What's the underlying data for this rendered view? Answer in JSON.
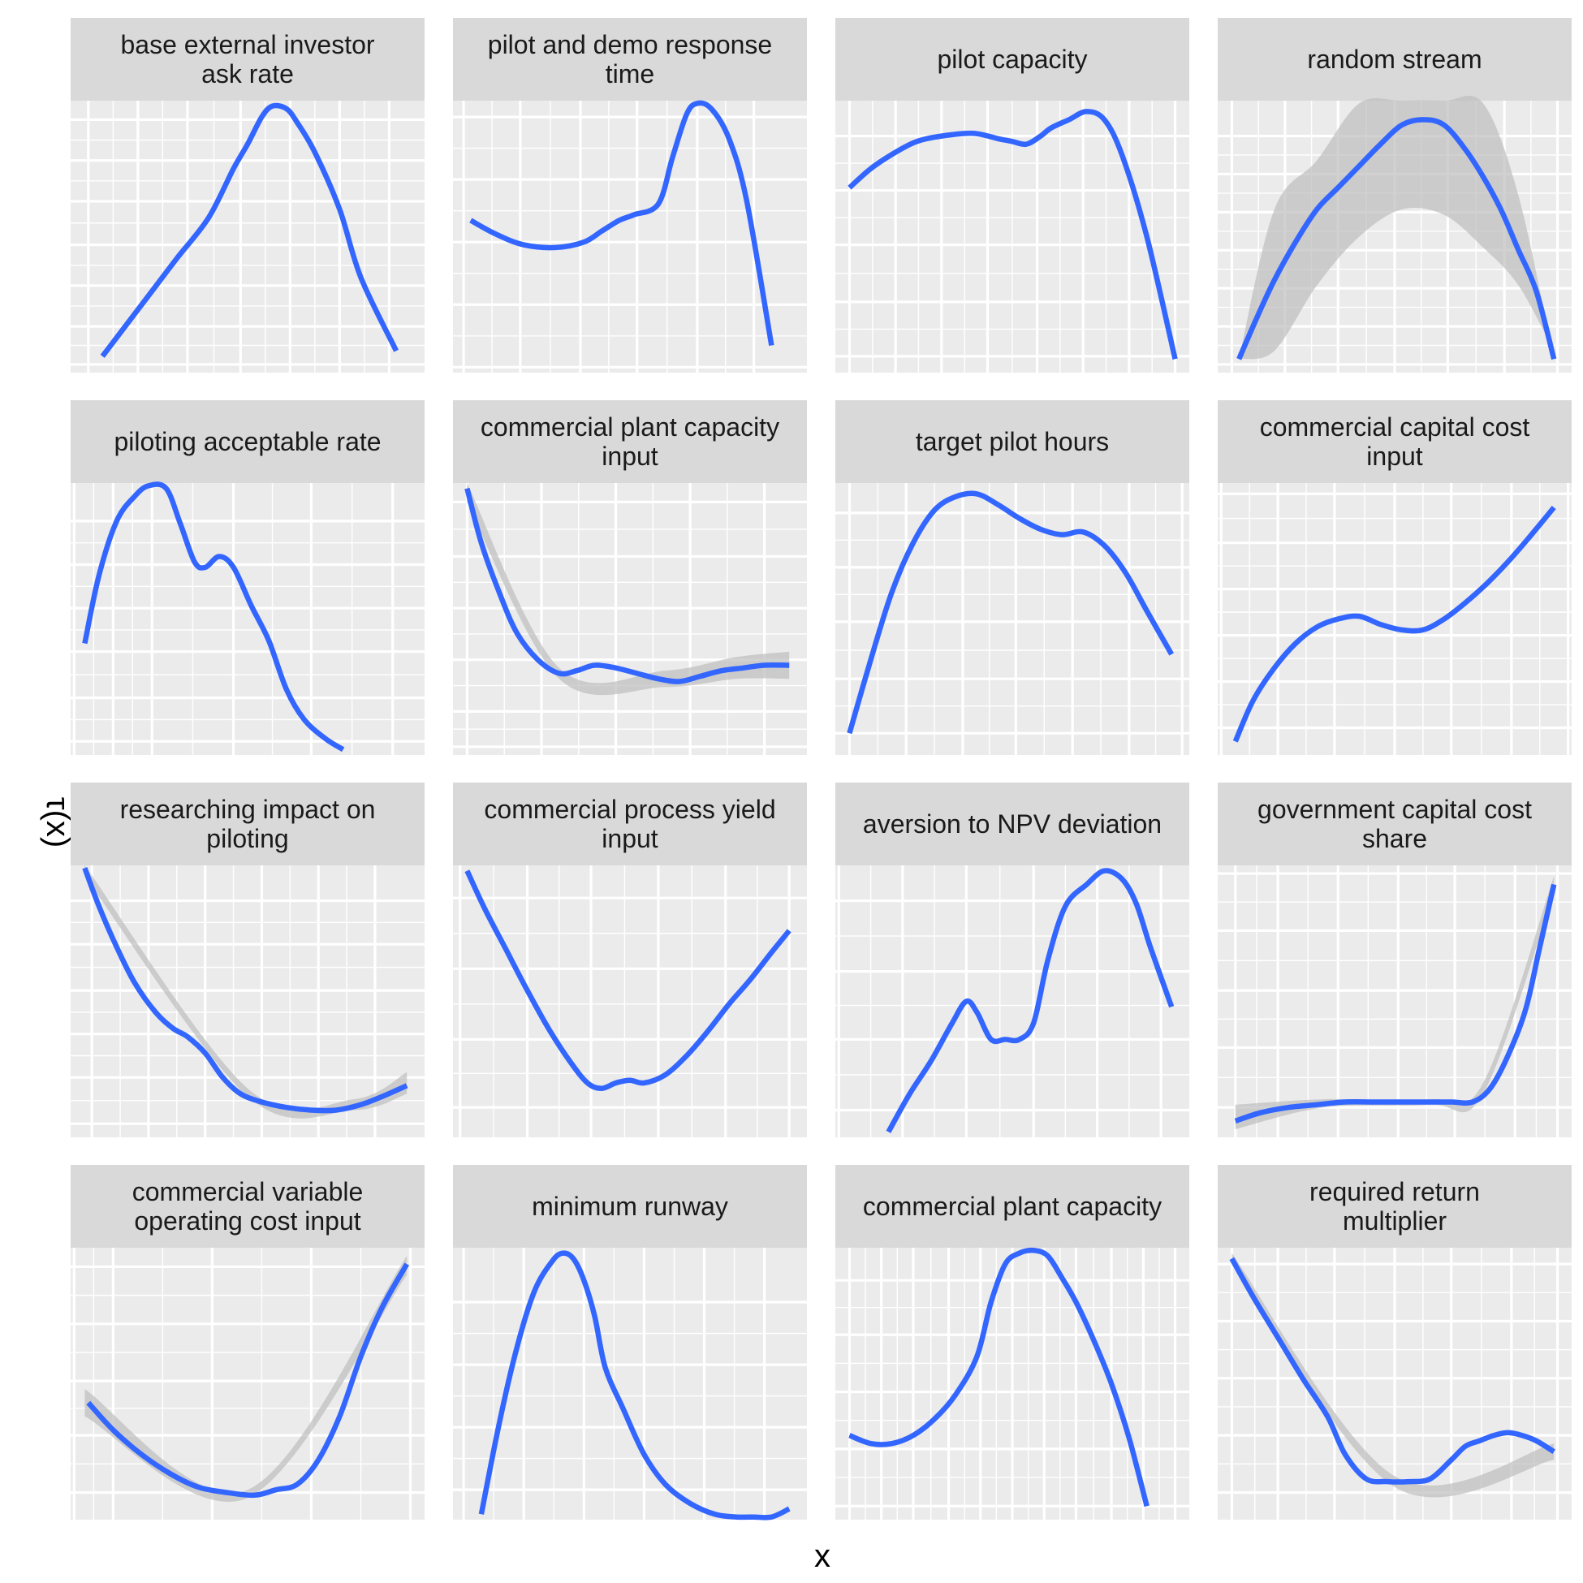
{
  "chart_data": {
    "type": "line",
    "xlabel": "x",
    "ylabel": "τ(x)",
    "layout": "facet-wrap 4x4, free scales, axis tick labels hidden",
    "style": {
      "panel_bg": "#EBEBEB",
      "strip_bg": "#D9D9D9",
      "grid_color": "#FFFFFF",
      "line_color": "#3366FF",
      "ribbon_color": "#BDBDBD"
    },
    "panels": [
      {
        "title": "base external investor ask rate",
        "xticks": [
          0.05,
          0.19,
          0.33,
          0.48,
          0.62,
          0.76,
          0.9
        ],
        "yticks": [
          0.03,
          0.17,
          0.32,
          0.47,
          0.63,
          0.78,
          0.93
        ],
        "x": [
          0.09,
          0.23,
          0.3,
          0.39,
          0.46,
          0.5,
          0.54,
          0.57,
          0.61,
          0.64,
          0.69,
          0.76,
          0.82,
          0.92
        ],
        "y": [
          0.06,
          0.3,
          0.42,
          0.57,
          0.75,
          0.84,
          0.94,
          0.98,
          0.97,
          0.92,
          0.81,
          0.6,
          0.35,
          0.08
        ],
        "band": []
      },
      {
        "title": "pilot and demo response time",
        "xticks": [
          0.03,
          0.19,
          0.36,
          0.52,
          0.69,
          0.85
        ],
        "yticks": [
          0.02,
          0.25,
          0.48,
          0.71,
          0.94
        ],
        "x": [
          0.05,
          0.12,
          0.2,
          0.29,
          0.37,
          0.42,
          0.47,
          0.51,
          0.58,
          0.62,
          0.66,
          0.69,
          0.73,
          0.78,
          0.83,
          0.9
        ],
        "y": [
          0.56,
          0.51,
          0.47,
          0.46,
          0.48,
          0.52,
          0.56,
          0.58,
          0.62,
          0.79,
          0.95,
          0.99,
          0.97,
          0.86,
          0.63,
          0.1
        ],
        "band": []
      },
      {
        "title": "pilot capacity",
        "xticks": [
          0.04,
          0.17,
          0.3,
          0.43,
          0.57,
          0.7,
          0.83,
          0.96
        ],
        "yticks": [
          0.06,
          0.26,
          0.47,
          0.67,
          0.87
        ],
        "x": [
          0.04,
          0.1,
          0.17,
          0.23,
          0.3,
          0.39,
          0.46,
          0.5,
          0.54,
          0.58,
          0.61,
          0.66,
          0.71,
          0.76,
          0.81,
          0.88,
          0.96
        ],
        "y": [
          0.68,
          0.75,
          0.81,
          0.85,
          0.87,
          0.88,
          0.86,
          0.85,
          0.84,
          0.87,
          0.9,
          0.93,
          0.96,
          0.93,
          0.8,
          0.5,
          0.05
        ],
        "band": []
      },
      {
        "title": "random stream",
        "xticks": [
          0.04,
          0.19,
          0.34,
          0.5,
          0.65,
          0.81,
          0.96
        ],
        "yticks": [
          0.03,
          0.17,
          0.31,
          0.45,
          0.59,
          0.73,
          0.87
        ],
        "x": [
          0.06,
          0.11,
          0.16,
          0.22,
          0.28,
          0.34,
          0.4,
          0.46,
          0.52,
          0.58,
          0.64,
          0.7,
          0.75,
          0.8,
          0.85,
          0.9,
          0.95
        ],
        "y": [
          0.05,
          0.2,
          0.34,
          0.48,
          0.6,
          0.68,
          0.76,
          0.84,
          0.91,
          0.93,
          0.91,
          0.82,
          0.72,
          0.6,
          0.45,
          0.3,
          0.05
        ],
        "band": [
          [
            0.06,
            0.16,
            0.28,
            0.4,
            0.52,
            0.64,
            0.75,
            0.85,
            0.95
          ],
          [
            0.05,
            0.08,
            0.32,
            0.5,
            0.6,
            0.58,
            0.46,
            0.32,
            0.08
          ],
          [
            0.05,
            0.6,
            0.78,
            0.99,
            1.0,
            1.0,
            0.99,
            0.65,
            0.05
          ]
        ]
      },
      {
        "title": "piloting acceptable rate",
        "xticks": [
          0.01,
          0.12,
          0.23,
          0.46,
          0.68,
          0.91
        ],
        "yticks": [
          0.05,
          0.21,
          0.38,
          0.54,
          0.7,
          0.86
        ],
        "x": [
          0.04,
          0.08,
          0.13,
          0.18,
          0.22,
          0.27,
          0.31,
          0.35,
          0.38,
          0.42,
          0.46,
          0.51,
          0.56,
          0.61,
          0.66,
          0.72,
          0.77
        ],
        "y": [
          0.41,
          0.66,
          0.86,
          0.95,
          0.99,
          0.98,
          0.85,
          0.71,
          0.69,
          0.73,
          0.69,
          0.55,
          0.42,
          0.24,
          0.13,
          0.06,
          0.02
        ],
        "band": []
      },
      {
        "title": "commercial plant capacity input",
        "xticks": [
          0.04,
          0.25,
          0.46,
          0.67,
          0.88
        ],
        "yticks": [
          0.03,
          0.16,
          0.35,
          0.54,
          0.73,
          0.93
        ],
        "x": [
          0.04,
          0.08,
          0.13,
          0.18,
          0.24,
          0.3,
          0.35,
          0.4,
          0.46,
          0.52,
          0.58,
          0.64,
          0.7,
          0.76,
          0.82,
          0.88,
          0.95
        ],
        "y": [
          0.98,
          0.78,
          0.6,
          0.45,
          0.35,
          0.3,
          0.31,
          0.33,
          0.32,
          0.3,
          0.28,
          0.27,
          0.29,
          0.31,
          0.32,
          0.33,
          0.33
        ],
        "band": [
          [
            0.04,
            0.3,
            0.6,
            0.8,
            0.95
          ],
          [
            0.93,
            0.28,
            0.25,
            0.28,
            0.28
          ],
          [
            1.0,
            0.32,
            0.31,
            0.36,
            0.38
          ]
        ]
      },
      {
        "title": "target pilot hours",
        "xticks": [
          0.04,
          0.2,
          0.36,
          0.51,
          0.67,
          0.83,
          0.98
        ],
        "yticks": [
          0.08,
          0.28,
          0.49,
          0.69,
          0.89
        ],
        "x": [
          0.04,
          0.1,
          0.16,
          0.22,
          0.28,
          0.34,
          0.4,
          0.46,
          0.52,
          0.58,
          0.64,
          0.7,
          0.76,
          0.82,
          0.88,
          0.95
        ],
        "y": [
          0.08,
          0.35,
          0.6,
          0.78,
          0.9,
          0.95,
          0.96,
          0.92,
          0.87,
          0.83,
          0.81,
          0.82,
          0.77,
          0.67,
          0.53,
          0.37
        ],
        "band": []
      },
      {
        "title": "commercial capital cost input",
        "xticks": [
          0.01,
          0.17,
          0.33,
          0.5,
          0.66,
          0.83,
          0.99
        ],
        "yticks": [
          0.1,
          0.27,
          0.44,
          0.61,
          0.78,
          0.96
        ],
        "x": [
          0.05,
          0.1,
          0.16,
          0.22,
          0.28,
          0.34,
          0.4,
          0.46,
          0.52,
          0.58,
          0.64,
          0.7,
          0.76,
          0.82,
          0.88,
          0.95
        ],
        "y": [
          0.05,
          0.2,
          0.32,
          0.41,
          0.47,
          0.5,
          0.51,
          0.48,
          0.46,
          0.46,
          0.5,
          0.56,
          0.63,
          0.71,
          0.8,
          0.91
        ],
        "band": []
      },
      {
        "title": "researching impact on piloting",
        "xticks": [
          0.06,
          0.22,
          0.38,
          0.54,
          0.7,
          0.86
        ],
        "yticks": [
          0.05,
          0.22,
          0.38,
          0.54,
          0.71,
          0.87
        ],
        "x": [
          0.04,
          0.08,
          0.13,
          0.18,
          0.24,
          0.29,
          0.33,
          0.38,
          0.43,
          0.48,
          0.54,
          0.61,
          0.68,
          0.75,
          0.82,
          0.88,
          0.95
        ],
        "y": [
          0.99,
          0.85,
          0.7,
          0.57,
          0.46,
          0.4,
          0.37,
          0.31,
          0.22,
          0.16,
          0.13,
          0.11,
          0.1,
          0.1,
          0.12,
          0.15,
          0.19
        ],
        "band": [
          [
            0.04,
            0.5,
            0.8,
            0.95
          ],
          [
            0.96,
            0.15,
            0.1,
            0.16
          ],
          [
            1.0,
            0.18,
            0.14,
            0.24
          ]
        ]
      },
      {
        "title": "commercial process yield input",
        "xticks": [
          0.02,
          0.21,
          0.39,
          0.58,
          0.77,
          0.95
        ],
        "yticks": [
          0.11,
          0.36,
          0.62,
          0.88
        ],
        "x": [
          0.04,
          0.09,
          0.15,
          0.21,
          0.27,
          0.33,
          0.38,
          0.42,
          0.46,
          0.5,
          0.54,
          0.6,
          0.66,
          0.72,
          0.78,
          0.84,
          0.9,
          0.95
        ],
        "y": [
          0.98,
          0.84,
          0.69,
          0.54,
          0.4,
          0.28,
          0.2,
          0.18,
          0.2,
          0.21,
          0.2,
          0.23,
          0.3,
          0.39,
          0.49,
          0.58,
          0.68,
          0.76
        ],
        "band": []
      },
      {
        "title": "aversion to NPV deviation",
        "xticks": [
          0.01,
          0.19,
          0.37,
          0.56,
          0.74,
          0.92
        ],
        "yticks": [
          0.1,
          0.36,
          0.61,
          0.87
        ],
        "x": [
          0.15,
          0.21,
          0.27,
          0.33,
          0.37,
          0.4,
          0.44,
          0.48,
          0.52,
          0.56,
          0.6,
          0.65,
          0.71,
          0.76,
          0.81,
          0.85,
          0.89,
          0.95
        ],
        "y": [
          0.02,
          0.16,
          0.28,
          0.42,
          0.5,
          0.46,
          0.36,
          0.36,
          0.36,
          0.42,
          0.65,
          0.85,
          0.93,
          0.98,
          0.95,
          0.86,
          0.7,
          0.48
        ],
        "band": []
      },
      {
        "title": "government capital cost share",
        "xticks": [
          0.05,
          0.17,
          0.34,
          0.51,
          0.67,
          0.84,
          0.96
        ],
        "yticks": [
          0.11,
          0.33,
          0.54,
          0.76,
          0.97
        ],
        "x": [
          0.05,
          0.12,
          0.2,
          0.28,
          0.36,
          0.44,
          0.52,
          0.6,
          0.66,
          0.72,
          0.77,
          0.82,
          0.87,
          0.91,
          0.95
        ],
        "y": [
          0.06,
          0.09,
          0.11,
          0.12,
          0.13,
          0.13,
          0.13,
          0.13,
          0.13,
          0.13,
          0.18,
          0.3,
          0.47,
          0.7,
          0.93
        ],
        "band": [
          [
            0.05,
            0.3,
            0.6,
            0.75,
            0.95
          ],
          [
            0.03,
            0.11,
            0.12,
            0.16,
            0.9
          ],
          [
            0.12,
            0.14,
            0.14,
            0.2,
            0.96
          ]
        ]
      },
      {
        "title": "commercial variable operating cost input",
        "xticks": [
          0.01,
          0.12,
          0.4,
          0.68,
          0.96
        ],
        "yticks": [
          0.1,
          0.31,
          0.51,
          0.72,
          0.93
        ],
        "x": [
          0.05,
          0.12,
          0.2,
          0.28,
          0.36,
          0.44,
          0.52,
          0.58,
          0.64,
          0.7,
          0.76,
          0.82,
          0.88,
          0.95
        ],
        "y": [
          0.43,
          0.33,
          0.24,
          0.17,
          0.12,
          0.1,
          0.09,
          0.11,
          0.13,
          0.22,
          0.38,
          0.6,
          0.78,
          0.94
        ],
        "band": [
          [
            0.04,
            0.5,
            0.95
          ],
          [
            0.38,
            0.08,
            0.9
          ],
          [
            0.48,
            0.11,
            0.97
          ]
        ]
      },
      {
        "title": "minimum runway",
        "xticks": [
          0.03,
          0.2,
          0.37,
          0.54,
          0.71,
          0.88
        ],
        "yticks": [
          0.11,
          0.34,
          0.57,
          0.8
        ],
        "x": [
          0.08,
          0.13,
          0.18,
          0.23,
          0.28,
          0.31,
          0.34,
          0.37,
          0.4,
          0.43,
          0.48,
          0.54,
          0.6,
          0.67,
          0.74,
          0.8,
          0.85,
          0.9,
          0.95
        ],
        "y": [
          0.02,
          0.35,
          0.63,
          0.84,
          0.95,
          0.98,
          0.96,
          0.88,
          0.75,
          0.56,
          0.41,
          0.24,
          0.13,
          0.06,
          0.02,
          0.01,
          0.01,
          0.01,
          0.04
        ],
        "band": []
      },
      {
        "title": "commercial plant capacity",
        "xticks": [
          0.04,
          0.13,
          0.22,
          0.32,
          0.41,
          0.5,
          0.59,
          0.68,
          0.78,
          0.87,
          0.96
        ],
        "yticks": [
          0.05,
          0.26,
          0.47,
          0.68,
          0.88
        ],
        "x": [
          0.04,
          0.1,
          0.16,
          0.22,
          0.28,
          0.34,
          0.4,
          0.44,
          0.48,
          0.52,
          0.56,
          0.6,
          0.64,
          0.68,
          0.73,
          0.78,
          0.83,
          0.88
        ],
        "y": [
          0.31,
          0.28,
          0.28,
          0.31,
          0.37,
          0.46,
          0.6,
          0.8,
          0.94,
          0.98,
          0.99,
          0.97,
          0.89,
          0.8,
          0.66,
          0.5,
          0.3,
          0.05
        ],
        "band": []
      },
      {
        "title": "required return multiplier",
        "xticks": [
          0.04,
          0.17,
          0.33,
          0.5,
          0.66,
          0.83,
          0.96
        ],
        "yticks": [
          0.1,
          0.31,
          0.52,
          0.73,
          0.94
        ],
        "x": [
          0.04,
          0.1,
          0.17,
          0.24,
          0.31,
          0.36,
          0.42,
          0.48,
          0.54,
          0.6,
          0.66,
          0.7,
          0.74,
          0.78,
          0.82,
          0.86,
          0.9,
          0.95
        ],
        "y": [
          0.96,
          0.82,
          0.67,
          0.52,
          0.38,
          0.24,
          0.15,
          0.14,
          0.14,
          0.15,
          0.22,
          0.27,
          0.29,
          0.31,
          0.32,
          0.31,
          0.29,
          0.25
        ],
        "band": [
          [
            0.04,
            0.5,
            0.95
          ],
          [
            0.94,
            0.12,
            0.22
          ],
          [
            0.98,
            0.16,
            0.28
          ]
        ]
      }
    ]
  }
}
